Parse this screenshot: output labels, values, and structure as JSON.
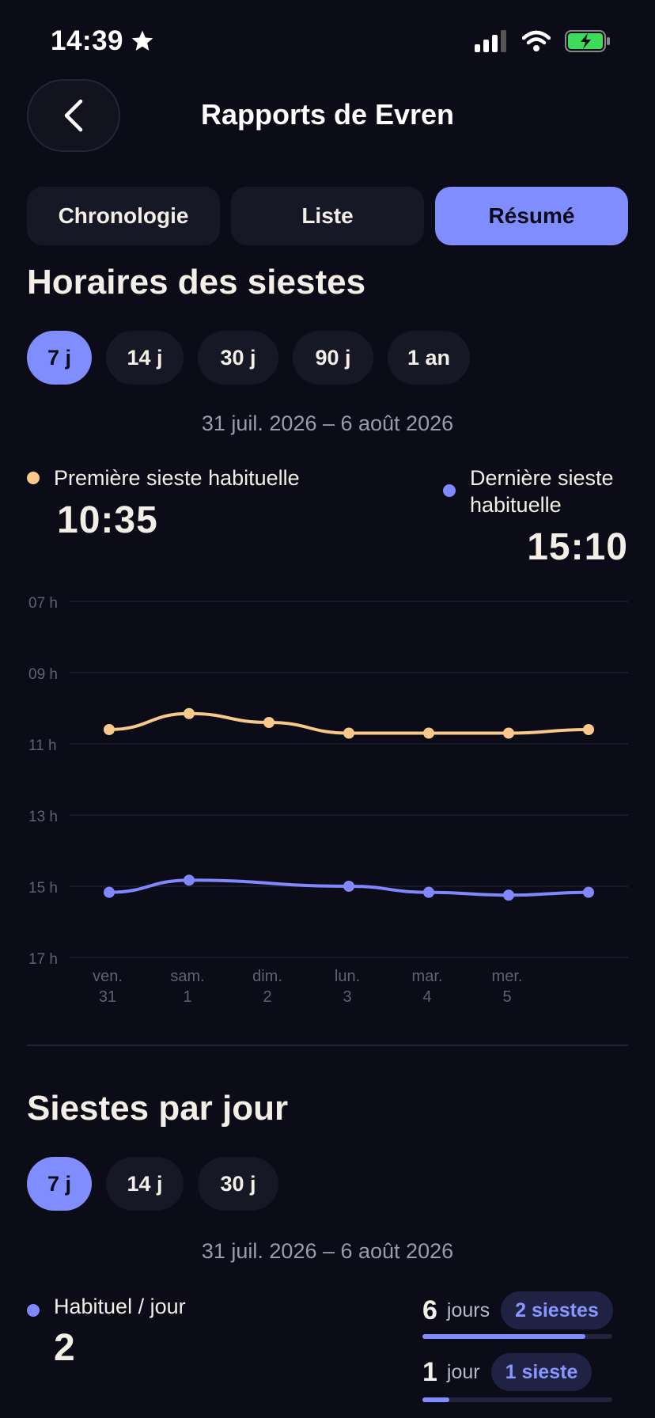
{
  "status": {
    "time": "14:39"
  },
  "header": {
    "title": "Rapports de Evren"
  },
  "tabs": [
    {
      "label": "Chronologie",
      "active": false
    },
    {
      "label": "Liste",
      "active": false
    },
    {
      "label": "Résumé",
      "active": true
    }
  ],
  "nap_times": {
    "title": "Horaires des siestes",
    "ranges": [
      "7 j",
      "14 j",
      "30 j",
      "90 j",
      "1 an"
    ],
    "selected_range": "7 j",
    "date_range": "31 juil. 2026 – 6 août 2026",
    "first": {
      "label": "Première sieste habituelle",
      "value": "10:35",
      "color": "#f8c98a"
    },
    "last": {
      "label_line1": "Dernière sieste",
      "label_line2": "habituelle",
      "value": "15:10",
      "color": "#8088ff"
    }
  },
  "chart_data": {
    "type": "line",
    "y_ticks": [
      "07 h",
      "09 h",
      "11 h",
      "13 h",
      "15 h",
      "17 h"
    ],
    "ylim": [
      7,
      17
    ],
    "y_inverted": true,
    "grid": true,
    "x_labels": [
      {
        "day": "ven.",
        "num": "31"
      },
      {
        "day": "sam.",
        "num": "1"
      },
      {
        "day": "dim.",
        "num": "2"
      },
      {
        "day": "lun.",
        "num": "3"
      },
      {
        "day": "mar.",
        "num": "4"
      },
      {
        "day": "mer.",
        "num": "5"
      },
      {
        "day": "",
        "num": ""
      }
    ],
    "series": [
      {
        "color": "#f8c98a",
        "values": [
          10.6,
          10.15,
          10.4,
          10.7,
          10.7,
          10.7,
          10.6
        ]
      },
      {
        "color": "#8088ff",
        "values": [
          15.17,
          14.83,
          null,
          15.0,
          15.17,
          15.25,
          15.17
        ]
      }
    ]
  },
  "naps_per_day": {
    "title": "Siestes par jour",
    "ranges": [
      "7 j",
      "14 j",
      "30 j"
    ],
    "selected_range": "7 j",
    "date_range": "31 juil. 2026 – 6 août 2026",
    "usual": {
      "label": "Habituel / jour",
      "value": "2",
      "color": "#8088ff"
    },
    "stats": [
      {
        "count": "6",
        "unit": "jours",
        "badge": "2 siestes",
        "fraction": 0.857
      },
      {
        "count": "1",
        "unit": "jour",
        "badge": "1 sieste",
        "fraction": 0.143
      }
    ]
  }
}
